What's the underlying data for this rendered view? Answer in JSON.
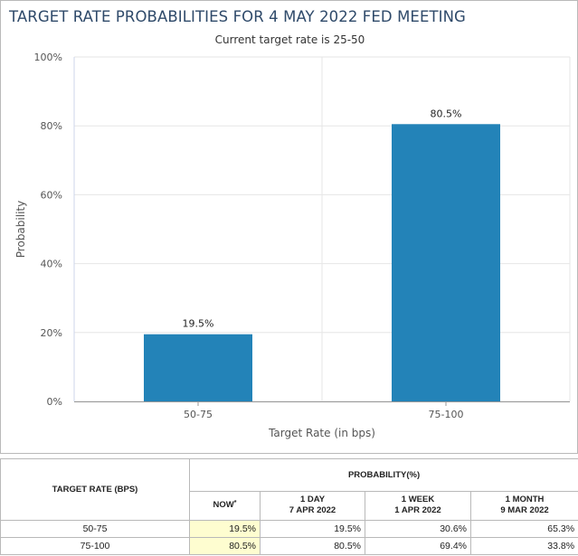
{
  "chart_data": {
    "type": "bar",
    "title": "TARGET RATE PROBABILITIES FOR 4 MAY 2022 FED MEETING",
    "subtitle": "Current target rate is 25-50",
    "categories": [
      "50-75",
      "75-100"
    ],
    "values": [
      19.5,
      80.5
    ],
    "value_labels": [
      "19.5%",
      "80.5%"
    ],
    "xlabel": "Target Rate (in bps)",
    "ylabel": "Probability",
    "ylim": [
      0,
      100
    ],
    "yticks": [
      0,
      20,
      40,
      60,
      80,
      100
    ],
    "ytick_labels": [
      "0%",
      "20%",
      "40%",
      "60%",
      "80%",
      "100%"
    ],
    "grid": true,
    "legend": "none",
    "bar_color": "#2383b8"
  },
  "table": {
    "rate_header": "TARGET RATE (BPS)",
    "probability_header": "PROBABILITY(%)",
    "columns": [
      {
        "label": "NOW",
        "marker": "*",
        "date": ""
      },
      {
        "label": "1 DAY",
        "date": "7 APR 2022"
      },
      {
        "label": "1 WEEK",
        "date": "1 APR 2022"
      },
      {
        "label": "1 MONTH",
        "date": "9 MAR 2022"
      }
    ],
    "rows": [
      {
        "rate": "50-75",
        "values": [
          "19.5%",
          "19.5%",
          "30.6%",
          "65.3%"
        ]
      },
      {
        "rate": "75-100",
        "values": [
          "80.5%",
          "80.5%",
          "69.4%",
          "33.8%"
        ]
      }
    ],
    "now_highlight_color": "#fefdd0"
  }
}
